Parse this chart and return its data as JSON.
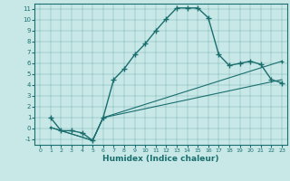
{
  "xlabel": "Humidex (Indice chaleur)",
  "bg_color": "#c8e8e8",
  "line_color": "#1a6e6e",
  "xlim": [
    -0.5,
    23.5
  ],
  "ylim": [
    -1.5,
    11.5
  ],
  "xticks": [
    0,
    1,
    2,
    3,
    4,
    5,
    6,
    7,
    8,
    9,
    10,
    11,
    12,
    13,
    14,
    15,
    16,
    17,
    18,
    19,
    20,
    21,
    22,
    23
  ],
  "yticks": [
    -1,
    0,
    1,
    2,
    3,
    4,
    5,
    6,
    7,
    8,
    9,
    10,
    11
  ],
  "line1_x": [
    1,
    2,
    3,
    4,
    5,
    6,
    7,
    8,
    9,
    10,
    11,
    12,
    13,
    14,
    15,
    16,
    17,
    18,
    19,
    20,
    21,
    22,
    23
  ],
  "line1_y": [
    1.0,
    -0.2,
    -0.2,
    -0.4,
    -1.1,
    1.0,
    4.5,
    5.5,
    6.8,
    7.8,
    9.0,
    10.1,
    11.1,
    11.1,
    11.1,
    10.2,
    6.8,
    5.8,
    6.0,
    6.2,
    5.9,
    4.5,
    4.2
  ],
  "line2_x": [
    1,
    5,
    6,
    23
  ],
  "line2_y": [
    0.1,
    -1.1,
    1.0,
    6.2
  ],
  "line3_x": [
    1,
    5,
    6,
    23
  ],
  "line3_y": [
    0.1,
    -1.1,
    1.0,
    4.5
  ]
}
